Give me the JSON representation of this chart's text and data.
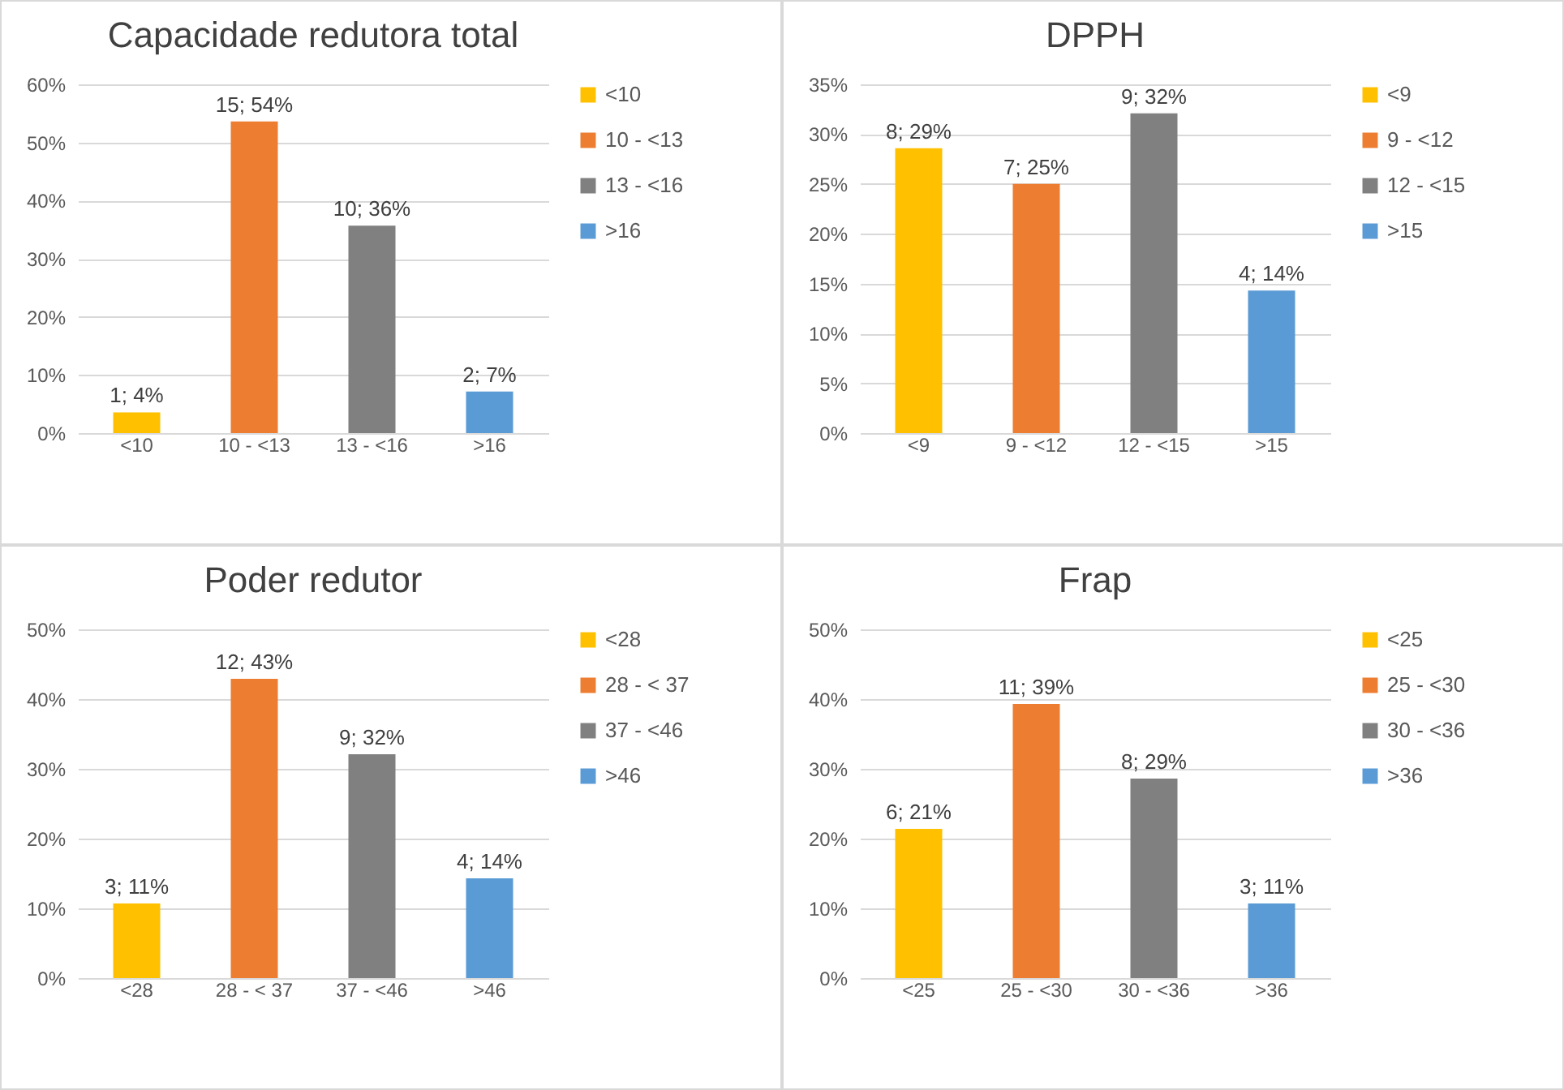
{
  "chart_data": [
    {
      "type": "bar",
      "title": "Capacidade redutora total",
      "categories": [
        "<10",
        "10 - <13",
        "13 - <16",
        ">16"
      ],
      "stacked": true,
      "series": [
        {
          "name": "<10",
          "color": "#ffc000",
          "values": [
            3.57,
            null,
            null,
            null
          ],
          "value_labels": [
            "1; 4%",
            null,
            null,
            null
          ]
        },
        {
          "name": "10 - <13",
          "color": "#ed7d31",
          "values": [
            null,
            53.6,
            null,
            null
          ],
          "value_labels": [
            null,
            "15; 54%",
            null,
            null
          ]
        },
        {
          "name": "13 - <16",
          "color": "#808080",
          "values": [
            null,
            null,
            35.7,
            null
          ],
          "value_labels": [
            null,
            null,
            "10; 36%",
            null
          ]
        },
        {
          "name": ">16",
          "color": "#5b9bd5",
          "values": [
            null,
            null,
            null,
            7.14
          ],
          "value_labels": [
            null,
            null,
            null,
            "2; 7%"
          ]
        }
      ],
      "ylim": [
        0,
        60
      ],
      "yticks": [
        {
          "value": 0,
          "label": "0%"
        },
        {
          "value": 10,
          "label": "10%"
        },
        {
          "value": 20,
          "label": "20%"
        },
        {
          "value": 30,
          "label": "30%"
        },
        {
          "value": 40,
          "label": "40%"
        },
        {
          "value": 50,
          "label": "50%"
        },
        {
          "value": 60,
          "label": "60%"
        }
      ],
      "grid": "y",
      "legend": "right"
    },
    {
      "type": "bar",
      "title": "DPPH",
      "categories": [
        "<9",
        "9 - <12",
        "12 - <15",
        ">15"
      ],
      "stacked": true,
      "series": [
        {
          "name": "<9",
          "color": "#ffc000",
          "values": [
            28.6,
            null,
            null,
            null
          ],
          "value_labels": [
            "8; 29%",
            null,
            null,
            null
          ]
        },
        {
          "name": "9 - <12",
          "color": "#ed7d31",
          "values": [
            null,
            25,
            null,
            null
          ],
          "value_labels": [
            null,
            "7; 25%",
            null,
            null
          ]
        },
        {
          "name": "12 - <15",
          "color": "#808080",
          "values": [
            null,
            null,
            32.1,
            null
          ],
          "value_labels": [
            null,
            null,
            "9; 32%",
            null
          ]
        },
        {
          "name": ">15",
          "color": "#5b9bd5",
          "values": [
            null,
            null,
            null,
            14.3
          ],
          "value_labels": [
            null,
            null,
            null,
            "4; 14%"
          ]
        }
      ],
      "ylim": [
        0,
        35
      ],
      "yticks": [
        {
          "value": 0,
          "label": "0%"
        },
        {
          "value": 5,
          "label": "5%"
        },
        {
          "value": 10,
          "label": "10%"
        },
        {
          "value": 15,
          "label": "15%"
        },
        {
          "value": 20,
          "label": "20%"
        },
        {
          "value": 25,
          "label": "25%"
        },
        {
          "value": 30,
          "label": "30%"
        },
        {
          "value": 35,
          "label": "35%"
        }
      ],
      "grid": "y",
      "legend": "right"
    },
    {
      "type": "bar",
      "title": "Poder redutor",
      "categories": [
        "<28",
        "28 - < 37",
        "37 - <46",
        ">46"
      ],
      "stacked": true,
      "series": [
        {
          "name": "<28",
          "color": "#ffc000",
          "values": [
            10.7,
            null,
            null,
            null
          ],
          "value_labels": [
            "3; 11%",
            null,
            null,
            null
          ]
        },
        {
          "name": "28 - < 37",
          "color": "#ed7d31",
          "values": [
            null,
            42.9,
            null,
            null
          ],
          "value_labels": [
            null,
            "12; 43%",
            null,
            null
          ]
        },
        {
          "name": "37 - <46",
          "color": "#808080",
          "values": [
            null,
            null,
            32.1,
            null
          ],
          "value_labels": [
            null,
            null,
            "9; 32%",
            null
          ]
        },
        {
          "name": ">46",
          "color": "#5b9bd5",
          "values": [
            null,
            null,
            null,
            14.3
          ],
          "value_labels": [
            null,
            null,
            null,
            "4; 14%"
          ]
        }
      ],
      "ylim": [
        0,
        50
      ],
      "yticks": [
        {
          "value": 0,
          "label": "0%"
        },
        {
          "value": 10,
          "label": "10%"
        },
        {
          "value": 20,
          "label": "20%"
        },
        {
          "value": 30,
          "label": "30%"
        },
        {
          "value": 40,
          "label": "40%"
        },
        {
          "value": 50,
          "label": "50%"
        }
      ],
      "grid": "y",
      "legend": "right"
    },
    {
      "type": "bar",
      "title": "Frap",
      "categories": [
        "<25",
        "25 - <30",
        "30 - <36",
        ">36"
      ],
      "stacked": true,
      "series": [
        {
          "name": "<25",
          "color": "#ffc000",
          "values": [
            21.4,
            null,
            null,
            null
          ],
          "value_labels": [
            "6; 21%",
            null,
            null,
            null
          ]
        },
        {
          "name": "25 - <30",
          "color": "#ed7d31",
          "values": [
            null,
            39.3,
            null,
            null
          ],
          "value_labels": [
            null,
            "11; 39%",
            null,
            null
          ]
        },
        {
          "name": "30 - <36",
          "color": "#808080",
          "values": [
            null,
            null,
            28.6,
            null
          ],
          "value_labels": [
            null,
            null,
            "8; 29%",
            null
          ]
        },
        {
          "name": ">36",
          "color": "#5b9bd5",
          "values": [
            null,
            null,
            null,
            10.7
          ],
          "value_labels": [
            null,
            null,
            null,
            "3; 11%"
          ]
        }
      ],
      "ylim": [
        0,
        50
      ],
      "yticks": [
        {
          "value": 0,
          "label": "0%"
        },
        {
          "value": 10,
          "label": "10%"
        },
        {
          "value": 20,
          "label": "20%"
        },
        {
          "value": 30,
          "label": "30%"
        },
        {
          "value": 40,
          "label": "40%"
        },
        {
          "value": 50,
          "label": "50%"
        }
      ],
      "grid": "y",
      "legend": "right"
    }
  ]
}
